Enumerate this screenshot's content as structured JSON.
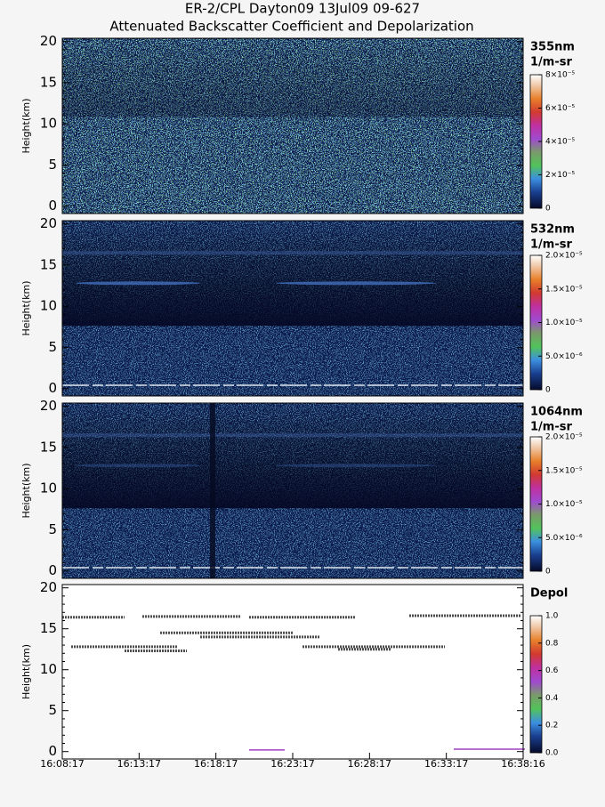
{
  "chart_data": [
    {
      "type": "heatmap",
      "title": "ER-2/CPL Dayton09 13Jul09 09-627",
      "subtitle": "Attenuated Backscatter Coefficient and Depolarization",
      "ylabel": "Height(km)",
      "ylim": [
        -0.9,
        20.4
      ],
      "yticks": [
        0,
        5,
        10,
        15,
        20
      ],
      "colorbar_title": [
        "355nm",
        "1/m-sr"
      ],
      "clim": [
        0,
        8e-05
      ],
      "cticks": [
        {
          "value": 0,
          "label": "0"
        },
        {
          "value": 2e-05,
          "label": "2×10⁻⁵"
        },
        {
          "value": 4e-05,
          "label": "4×10⁻⁵"
        },
        {
          "value": 6e-05,
          "label": "6×10⁻⁵"
        },
        {
          "value": 8e-05,
          "label": "8×10⁻⁵"
        }
      ]
    },
    {
      "type": "heatmap",
      "ylabel": "Height(km)",
      "ylim": [
        -0.9,
        20.4
      ],
      "yticks": [
        0,
        5,
        10,
        15,
        20
      ],
      "colorbar_title": [
        "532nm",
        "1/m-sr"
      ],
      "clim": [
        0,
        2e-05
      ],
      "cticks": [
        {
          "value": 0,
          "label": "0"
        },
        {
          "value": 5e-06,
          "label": "5.0×10⁻⁶"
        },
        {
          "value": 1e-05,
          "label": "1.0×10⁻⁵"
        },
        {
          "value": 1.5e-05,
          "label": "1.5×10⁻⁵"
        },
        {
          "value": 2e-05,
          "label": "2.0×10⁻⁵"
        }
      ]
    },
    {
      "type": "heatmap",
      "ylabel": "Height(km)",
      "ylim": [
        -0.9,
        20.4
      ],
      "yticks": [
        0,
        5,
        10,
        15,
        20
      ],
      "colorbar_title": [
        "1064nm",
        "1/m-sr"
      ],
      "clim": [
        0,
        2e-05
      ],
      "cticks": [
        {
          "value": 0,
          "label": "0"
        },
        {
          "value": 5e-06,
          "label": "5.0×10⁻⁶"
        },
        {
          "value": 1e-05,
          "label": "1.0×10⁻⁵"
        },
        {
          "value": 1.5e-05,
          "label": "1.5×10⁻⁵"
        },
        {
          "value": 2e-05,
          "label": "2.0×10⁻⁵"
        }
      ]
    },
    {
      "type": "heatmap",
      "ylabel": "Height(km)",
      "ylim": [
        -0.9,
        20.4
      ],
      "yticks": [
        0,
        5,
        10,
        15,
        20
      ],
      "colorbar_title": [
        "Depol"
      ],
      "clim": [
        0,
        1
      ],
      "cticks": [
        {
          "value": 0,
          "label": "0.0"
        },
        0.2,
        0.4,
        0.6,
        0.8,
        {
          "value": 1,
          "label": "1.0"
        }
      ],
      "x": [
        "16:08:17",
        "16:13:17",
        "16:18:17",
        "16:23:17",
        "16:28:17",
        "16:33:17",
        "16:38:16"
      ]
    }
  ]
}
